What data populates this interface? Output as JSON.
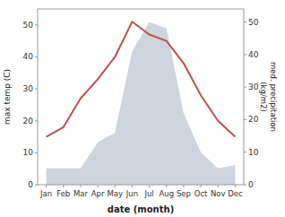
{
  "chart_data": {
    "type": "line",
    "categories": [
      "Jan",
      "Feb",
      "Mar",
      "Apr",
      "May",
      "Jun",
      "Jul",
      "Aug",
      "Sep",
      "Oct",
      "Nov",
      "Dec"
    ],
    "series": [
      {
        "type": "area",
        "axis": "y2",
        "color": "#adb9ca",
        "values": [
          5,
          5,
          5,
          13,
          16,
          41,
          50,
          48,
          22,
          10,
          5,
          6
        ]
      },
      {
        "type": "line",
        "color": "#c0504d",
        "values": [
          15,
          18,
          27,
          33,
          40,
          51,
          47,
          45,
          38,
          28,
          20,
          15
        ]
      }
    ],
    "x_label": "date (month)",
    "y_label": "max temp (C)",
    "y2_label": "med. precipitation\n(kg/m2)",
    "ylim": [
      0,
      55
    ],
    "yticks": [
      0,
      10,
      20,
      30,
      40,
      50
    ],
    "y2lim": [
      0,
      54
    ],
    "y2ticks": [
      0,
      10,
      20,
      30,
      40,
      50
    ]
  }
}
